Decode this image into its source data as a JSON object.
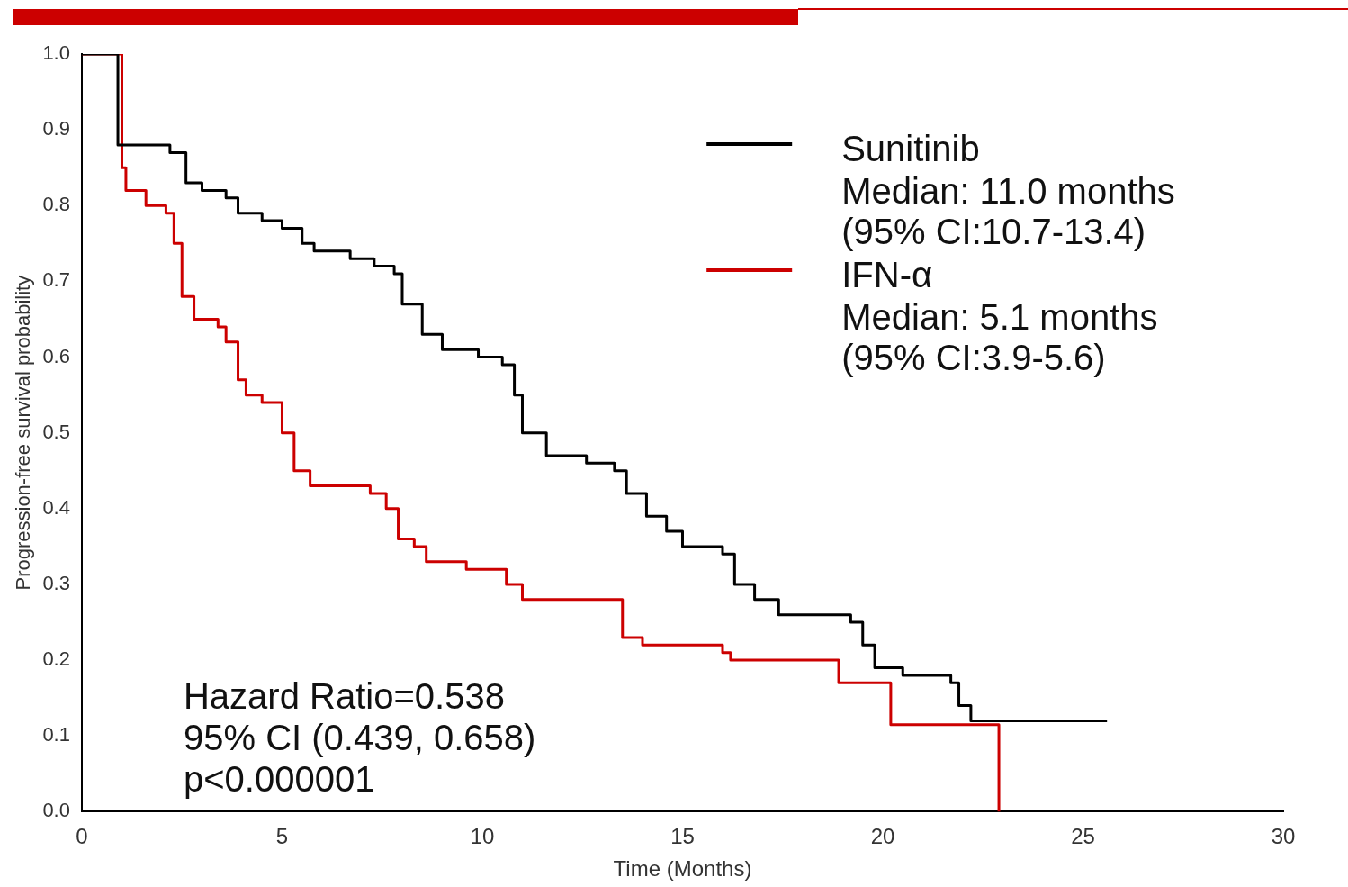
{
  "chart_data": {
    "type": "step",
    "xlabel": "Time (Months)",
    "ylabel": "Progression-free survival probability",
    "xlim": [
      0,
      30
    ],
    "xticks": [
      0,
      5,
      10,
      15,
      20,
      25,
      30
    ],
    "ylim": [
      0,
      1
    ],
    "yticks": [
      {
        "value": 0,
        "label": "0.0"
      },
      0.1,
      0.2,
      0.3,
      0.4,
      0.5,
      0.6,
      0.7,
      0.8,
      0.9,
      {
        "value": 1,
        "label": "1.0"
      }
    ],
    "legend": "top right",
    "grid": false,
    "series": [
      {
        "name": "Sunitinib",
        "color": "#000000",
        "x": [
          0,
          0.9,
          2.2,
          2.6,
          3.0,
          3.6,
          3.9,
          4.5,
          5.0,
          5.5,
          5.8,
          6.7,
          7.3,
          7.8,
          8.0,
          8.5,
          9.0,
          9.9,
          10.5,
          10.8,
          11.0,
          11.6,
          12.6,
          13.3,
          13.6,
          14.1,
          14.6,
          15.0,
          16.0,
          16.3,
          16.8,
          17.4,
          19.2,
          19.5,
          19.8,
          20.5,
          21.7,
          21.9,
          22.2,
          25.6
        ],
        "values": [
          1.0,
          0.88,
          0.87,
          0.83,
          0.82,
          0.81,
          0.79,
          0.78,
          0.77,
          0.75,
          0.74,
          0.73,
          0.72,
          0.71,
          0.67,
          0.63,
          0.61,
          0.6,
          0.59,
          0.55,
          0.5,
          0.47,
          0.46,
          0.45,
          0.42,
          0.39,
          0.37,
          0.35,
          0.34,
          0.3,
          0.28,
          0.26,
          0.25,
          0.22,
          0.19,
          0.18,
          0.17,
          0.14,
          0.12,
          0.12
        ]
      },
      {
        "name": "IFN-α",
        "color": "#cc0000",
        "x": [
          0,
          1.0,
          1.1,
          1.6,
          2.1,
          2.3,
          2.5,
          2.8,
          3.4,
          3.6,
          3.9,
          4.1,
          4.5,
          5.0,
          5.3,
          5.7,
          7.2,
          7.6,
          7.9,
          8.3,
          8.6,
          9.6,
          10.6,
          11.0,
          13.5,
          14.0,
          16.0,
          16.2,
          18.9,
          20.2,
          22.9
        ],
        "values": [
          1.0,
          0.85,
          0.82,
          0.8,
          0.79,
          0.75,
          0.68,
          0.65,
          0.64,
          0.62,
          0.57,
          0.55,
          0.54,
          0.5,
          0.45,
          0.43,
          0.42,
          0.4,
          0.36,
          0.35,
          0.33,
          0.32,
          0.3,
          0.28,
          0.23,
          0.22,
          0.21,
          0.2,
          0.17,
          0.115,
          0
        ]
      }
    ],
    "annotations": [
      "Median: 11.0 months",
      "(95% CI:10.7-13.4)",
      "Median: 5.1 months",
      "(95% CI:3.9-5.6)",
      "Hazard Ratio=0.538",
      "95% CI (0.439, 0.658)",
      "p<0.000001"
    ]
  }
}
